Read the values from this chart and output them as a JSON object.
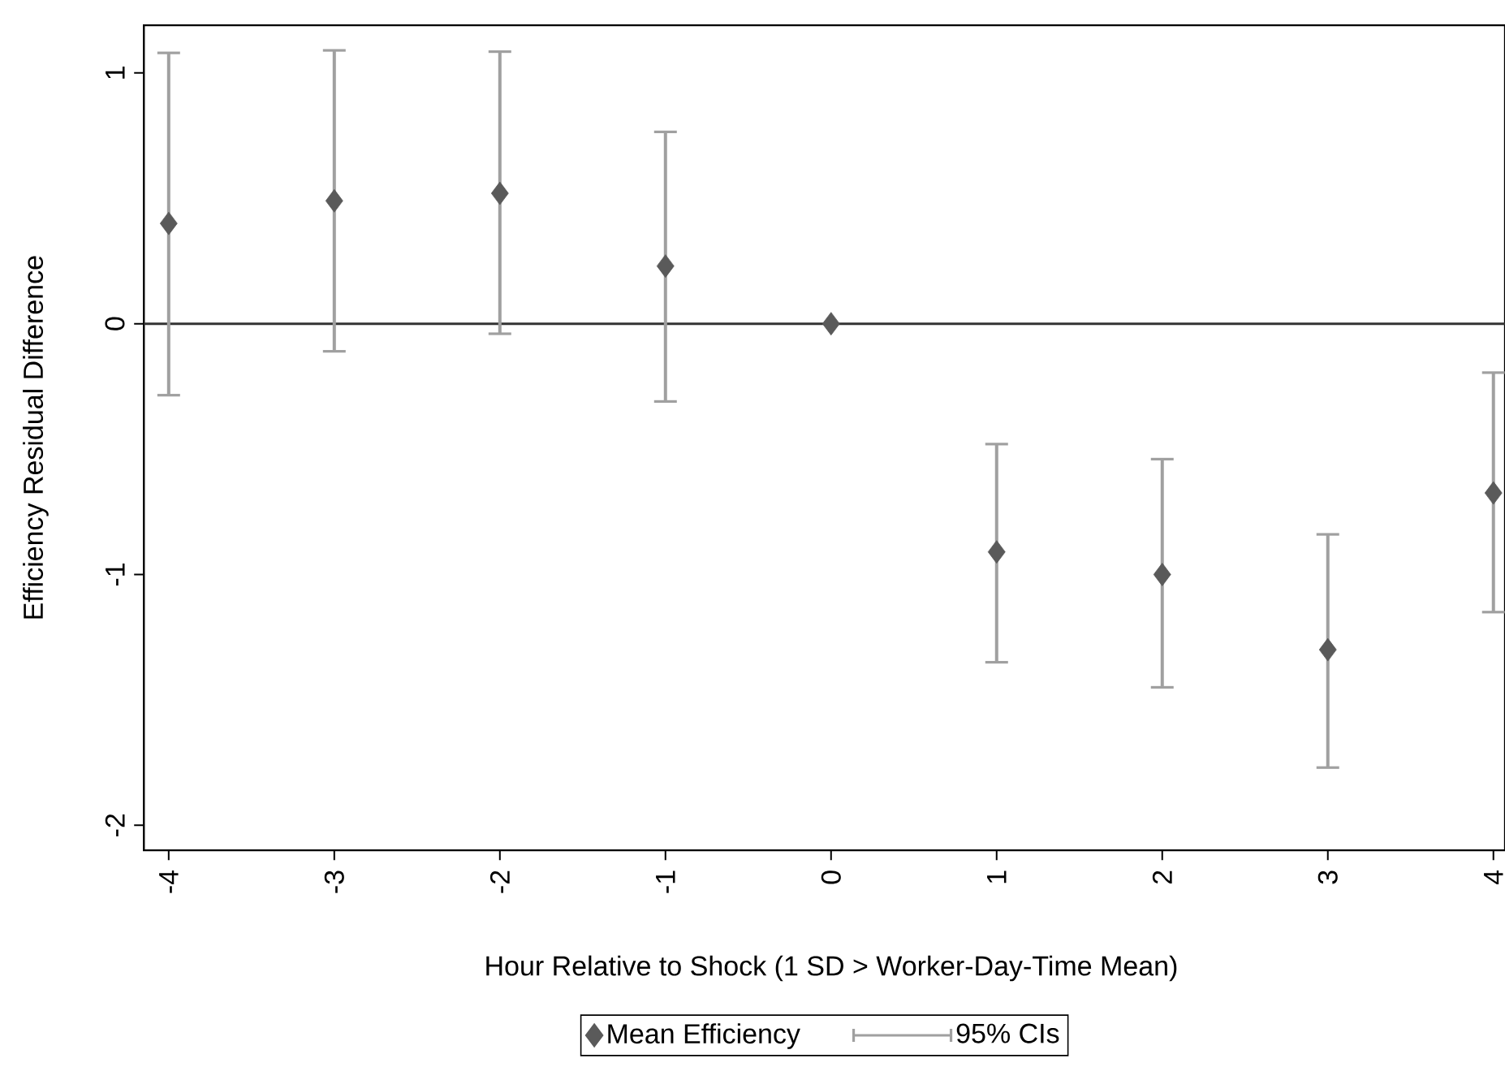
{
  "chart_data": {
    "type": "scatter",
    "xlabel": "Hour Relative to Shock (1 SD > Worker-Day-Time Mean)",
    "ylabel": "Efficiency Residual Difference",
    "x": [
      -4,
      -3,
      -2,
      -1,
      0,
      1,
      2,
      3,
      4
    ],
    "series": [
      {
        "name": "Mean Efficiency",
        "color": "#5a5a5a",
        "values": [
          0.4,
          0.49,
          0.52,
          0.23,
          0,
          -0.91,
          -1.0,
          -1.3,
          -0.675
        ],
        "errors": [
          [
            -0.285,
            1.08
          ],
          [
            -0.11,
            1.09
          ],
          [
            -0.04,
            1.085
          ],
          [
            -0.31,
            0.765
          ],
          null,
          [
            -1.35,
            -0.48
          ],
          [
            -1.45,
            -0.54
          ],
          [
            -1.77,
            -0.84
          ],
          [
            -1.15,
            -0.195
          ]
        ]
      }
    ],
    "annotations": [
      "95% CIs"
    ],
    "xlim": [
      -4.15,
      4.07
    ],
    "ylim": [
      -2.1,
      1.19
    ],
    "xticks": [
      -4,
      -3,
      -2,
      -1,
      0,
      1,
      2,
      3,
      4
    ],
    "yticks": [
      -2,
      -1,
      0,
      1
    ],
    "ref_lines": [
      {
        "axis": "y",
        "value": 0,
        "color": "#333333"
      }
    ],
    "marker": "diamond",
    "legend": "bottom",
    "grid": false
  }
}
